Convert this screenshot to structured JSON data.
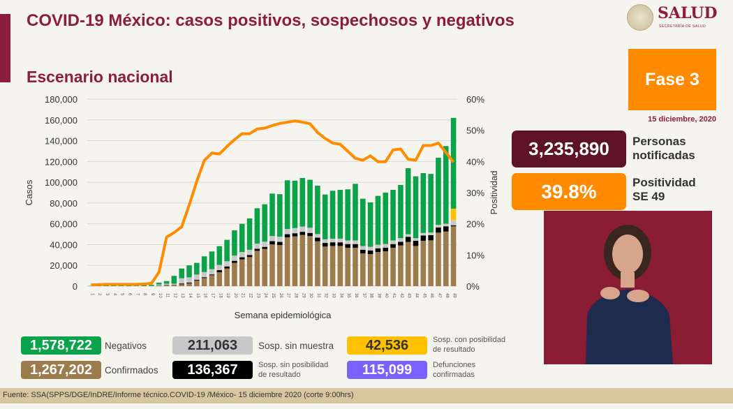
{
  "header": {
    "title": "COVID-19 México: casos positivos, sospechosos y negativos",
    "subtitle": "Escenario nacional",
    "logo_text": "SALUD",
    "logo_sub": "SECRETARÍA DE SALUD"
  },
  "side": {
    "phase": "Fase 3",
    "date": "15 diciembre, 2020",
    "notified_value": "3,235,890",
    "notified_label_1": "Personas",
    "notified_label_2": "notificadas",
    "positivity_value": "39.8%",
    "positivity_label_1": "Positividad",
    "positivity_label_2": "SE 49"
  },
  "legend": [
    {
      "value": "1,578,722",
      "label": "Negativos",
      "color": "#0aa34a",
      "text_color": "#ffffff"
    },
    {
      "value": "1,267,202",
      "label": "Confirmados",
      "color": "#9c7b4d",
      "text_color": "#ffffff"
    },
    {
      "value": "211,063",
      "label": "Sosp. sin muestra",
      "color": "#c8c8c8",
      "text_color": "#333333"
    },
    {
      "value": "136,367",
      "label": "Sosp. sin posibilidad de resultado",
      "label_1": "Sosp. sin posibilidad",
      "label_2": "de resultado",
      "color": "#000000",
      "text_color": "#ffffff"
    },
    {
      "value": "42,536",
      "label": "Sosp. con posibilidad de resultado",
      "label_1": "Sosp. con posibilidad",
      "label_2": "de resultado",
      "color": "#ffc000",
      "text_color": "#333333"
    },
    {
      "value": "115,099",
      "label": "Defunciones confirmadas",
      "label_1": "Defunciones",
      "label_2": "confirmadas",
      "color": "#7b61ff",
      "text_color": "#ffffff"
    }
  ],
  "footer": "Fuente: SSA(SPPS/DGE/InDRE/Informe técnico.COVID-19 /México- 15 diciembre 2020 (corte 9:00hrs)",
  "chart_data": {
    "type": "bar",
    "stacked": true,
    "xlabel": "Semana epidemiológica",
    "ylabel": "Casos",
    "y2label": "Positividad",
    "ylim": [
      0,
      180000
    ],
    "y2lim": [
      0,
      60
    ],
    "yticks": [
      "0",
      "20,000",
      "40,000",
      "60,000",
      "80,000",
      "100,000",
      "120,000",
      "140,000",
      "160,000",
      "180,000"
    ],
    "y2ticks": [
      "0%",
      "10%",
      "20%",
      "30%",
      "40%",
      "50%",
      "60%"
    ],
    "grid": true,
    "categories": [
      1,
      2,
      3,
      4,
      5,
      6,
      7,
      8,
      9,
      10,
      11,
      12,
      13,
      14,
      15,
      16,
      17,
      18,
      19,
      20,
      21,
      22,
      23,
      24,
      25,
      26,
      27,
      28,
      29,
      30,
      31,
      32,
      33,
      34,
      35,
      36,
      37,
      38,
      39,
      40,
      41,
      42,
      43,
      44,
      45,
      46,
      47,
      48,
      49
    ],
    "series": [
      {
        "name": "Confirmados",
        "color": "#9c7b4d",
        "values": [
          0,
          0,
          0,
          0,
          0,
          10,
          50,
          100,
          200,
          400,
          1100,
          1100,
          1800,
          2700,
          5400,
          7800,
          10500,
          13400,
          17000,
          22400,
          25800,
          28000,
          34000,
          35800,
          40300,
          39600,
          47000,
          47900,
          49300,
          48200,
          43200,
          38100,
          38700,
          38700,
          37000,
          37000,
          31600,
          30900,
          32900,
          33600,
          37000,
          39200,
          42500,
          38700,
          43700,
          44100,
          51500,
          52600,
          57600
        ]
      },
      {
        "name": "Sosp. sin posibilidad de resultado",
        "color": "#000000",
        "values": [
          0,
          0,
          0,
          0,
          0,
          0,
          0,
          0,
          0,
          200,
          200,
          200,
          800,
          800,
          800,
          800,
          800,
          2000,
          2000,
          2000,
          2000,
          2000,
          2000,
          2000,
          3000,
          3000,
          3000,
          3000,
          3000,
          3000,
          3500,
          3500,
          3500,
          3500,
          3500,
          3500,
          3500,
          3500,
          3500,
          3500,
          3500,
          3500,
          5000,
          5000,
          5000,
          5000,
          5000,
          5000,
          1000
        ]
      },
      {
        "name": "Sosp. sin muestra",
        "color": "#c8c8c8",
        "values": [
          0,
          0,
          0,
          0,
          0,
          0,
          0,
          0,
          0,
          1000,
          1000,
          1000,
          5000,
          5000,
          5000,
          5000,
          5000,
          5000,
          5000,
          5000,
          5000,
          5000,
          5000,
          5000,
          5000,
          5000,
          5000,
          5000,
          5000,
          5000,
          3500,
          3500,
          3500,
          3500,
          3500,
          3500,
          3500,
          3500,
          3500,
          3500,
          3500,
          3500,
          2500,
          2500,
          2500,
          2500,
          2500,
          2500,
          5000
        ]
      },
      {
        "name": "Sosp. con posibilidad de resultado",
        "color": "#ffc000",
        "values": [
          0,
          0,
          0,
          0,
          0,
          0,
          0,
          0,
          0,
          0,
          0,
          0,
          0,
          0,
          0,
          0,
          0,
          0,
          0,
          0,
          0,
          0,
          0,
          0,
          0,
          0,
          0,
          0,
          0,
          0,
          0,
          0,
          0,
          0,
          0,
          0,
          0,
          0,
          0,
          0,
          0,
          0,
          0,
          0,
          0,
          0,
          0,
          0,
          11000
        ]
      },
      {
        "name": "Negativos",
        "color": "#0aa34a",
        "values": [
          300,
          800,
          1200,
          1500,
          1200,
          1000,
          1000,
          900,
          1000,
          1800,
          2600,
          7600,
          9400,
          11500,
          11200,
          15100,
          17100,
          18100,
          20600,
          24300,
          27200,
          30200,
          34000,
          36000,
          40800,
          40900,
          46900,
          45600,
          46800,
          46200,
          46500,
          43100,
          46100,
          47000,
          49200,
          54500,
          45600,
          42700,
          47000,
          49400,
          48700,
          51200,
          63500,
          59500,
          57600,
          56400,
          64600,
          74700,
          87300
        ]
      }
    ],
    "line": {
      "name": "Positividad",
      "axis": "right",
      "unit": "%",
      "color": "#ff8c00",
      "values": [
        0.4,
        0.5,
        0.6,
        0.6,
        0.6,
        0.6,
        0.6,
        0.7,
        0.9,
        4.5,
        15.7,
        17.2,
        19.0,
        26.0,
        33.6,
        40.3,
        42.7,
        42.4,
        44.8,
        47.0,
        48.9,
        48.9,
        50.4,
        50.7,
        51.5,
        52.2,
        52.6,
        53.0,
        52.6,
        52.1,
        49.3,
        47.4,
        45.9,
        45.5,
        43.3,
        41.0,
        40.4,
        41.8,
        39.9,
        39.9,
        43.7,
        44.0,
        40.7,
        40.4,
        45.1,
        45.1,
        45.9,
        42.9,
        39.8
      ]
    }
  }
}
